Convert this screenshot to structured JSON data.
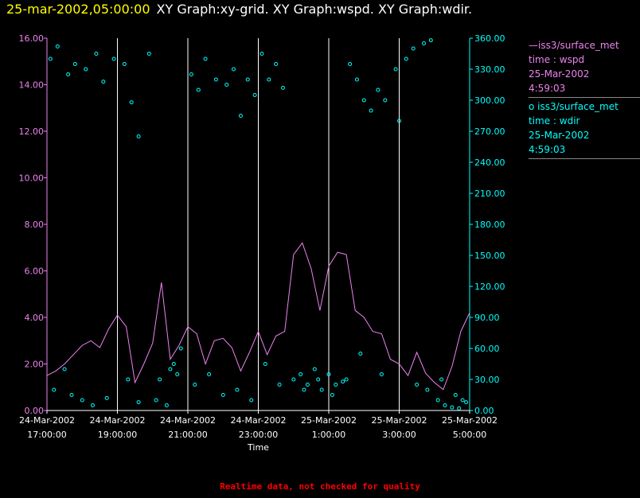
{
  "header": {
    "date": "25-mar-2002,05:00:00",
    "graphs": "XY Graph:xy-grid.  XY Graph:wspd.  XY Graph:wdir."
  },
  "legend": {
    "series1": {
      "name": "iss3/surface_met",
      "var": "time : wspd",
      "date": "25-Mar-2002",
      "time": "4:59:03",
      "color": "#ee82ee"
    },
    "series2": {
      "name": "iss3/surface_met",
      "var": "time : wdir",
      "date": "25-Mar-2002",
      "time": "4:59:03",
      "color": "#00ffff"
    }
  },
  "footer": "Realtime data, not checked for quality",
  "chart_data": {
    "type": "line",
    "xlabel": "Time",
    "x_ticks": [
      {
        "date": "24-Mar-2002",
        "time": "17:00:00"
      },
      {
        "date": "24-Mar-2002",
        "time": "19:00:00"
      },
      {
        "date": "24-Mar-2002",
        "time": "21:00:00"
      },
      {
        "date": "24-Mar-2002",
        "time": "23:00:00"
      },
      {
        "date": "25-Mar-2002",
        "time": "1:00:00"
      },
      {
        "date": "25-Mar-2002",
        "time": "3:00:00"
      },
      {
        "date": "25-Mar-2002",
        "time": "5:00:00"
      }
    ],
    "xlim_hours": [
      17,
      29
    ],
    "y_left": {
      "ylim": [
        0,
        16
      ],
      "ticks": [
        "0.00",
        "2.00",
        "4.00",
        "6.00",
        "8.00",
        "10.00",
        "12.00",
        "14.00",
        "16.00"
      ],
      "color": "#ee82ee"
    },
    "y_right": {
      "ylim": [
        0,
        360
      ],
      "ticks": [
        "0.00",
        "30.00",
        "60.00",
        "90.00",
        "120.00",
        "150.00",
        "180.00",
        "210.00",
        "240.00",
        "270.00",
        "300.00",
        "330.00",
        "360.00"
      ],
      "color": "#00ffff"
    },
    "grid": "vertical",
    "series": [
      {
        "name": "time : wspd",
        "type": "line",
        "color": "#ee82ee",
        "x_hours": [
          17.0,
          17.25,
          17.5,
          17.75,
          18.0,
          18.25,
          18.5,
          18.75,
          19.0,
          19.25,
          19.5,
          19.75,
          20.0,
          20.25,
          20.5,
          20.75,
          21.0,
          21.25,
          21.5,
          21.75,
          22.0,
          22.25,
          22.5,
          22.75,
          23.0,
          23.25,
          23.5,
          23.75,
          24.0,
          24.25,
          24.5,
          24.75,
          25.0,
          25.25,
          25.5,
          25.75,
          26.0,
          26.25,
          26.5,
          26.75,
          27.0,
          27.25,
          27.5,
          27.75,
          28.0,
          28.25,
          28.5,
          28.75,
          29.0
        ],
        "values": [
          1.5,
          1.7,
          2.0,
          2.4,
          2.8,
          3.0,
          2.7,
          3.5,
          4.1,
          3.6,
          1.2,
          2.0,
          2.9,
          5.5,
          2.2,
          2.8,
          3.6,
          3.3,
          2.0,
          3.0,
          3.1,
          2.7,
          1.7,
          2.5,
          3.4,
          2.4,
          3.2,
          3.4,
          6.7,
          7.2,
          6.1,
          4.3,
          6.2,
          6.8,
          6.7,
          4.3,
          4.0,
          3.4,
          3.3,
          2.2,
          2.0,
          1.5,
          2.5,
          1.6,
          1.2,
          0.9,
          1.9,
          3.4,
          4.2
        ]
      },
      {
        "name": "time : wdir",
        "type": "scatter",
        "color": "#00ffff",
        "x_hours": [
          17.1,
          17.3,
          17.6,
          17.8,
          18.1,
          18.4,
          18.6,
          18.9,
          19.2,
          19.4,
          19.6,
          19.9,
          20.2,
          20.5,
          20.7,
          21.1,
          21.3,
          21.5,
          21.8,
          22.1,
          22.3,
          22.5,
          22.7,
          22.9,
          23.1,
          23.3,
          23.5,
          23.7,
          24.0,
          24.2,
          24.4,
          24.6,
          24.8,
          25.0,
          25.2,
          25.4,
          25.6,
          25.8,
          26.0,
          26.2,
          26.4,
          26.6,
          26.9,
          27.2,
          27.4,
          27.7,
          27.9,
          28.1,
          28.3,
          28.5,
          28.7,
          28.9,
          17.2,
          17.5,
          17.7,
          18.0,
          18.3,
          18.7,
          19.3,
          19.6,
          20.1,
          20.4,
          20.6,
          20.8,
          21.2,
          21.6,
          22.0,
          22.4,
          22.8,
          23.2,
          23.6,
          24.3,
          24.7,
          25.1,
          25.5,
          25.9,
          26.5,
          27.0,
          27.5,
          27.8,
          28.2,
          28.6,
          28.8
        ],
        "values": [
          340,
          352,
          325,
          335,
          330,
          345,
          318,
          340,
          335,
          298,
          265,
          345,
          30,
          40,
          35,
          325,
          310,
          340,
          320,
          315,
          330,
          285,
          320,
          305,
          345,
          320,
          335,
          312,
          30,
          35,
          25,
          40,
          20,
          35,
          25,
          28,
          335,
          320,
          300,
          290,
          310,
          300,
          330,
          340,
          350,
          355,
          358,
          10,
          5,
          3,
          2,
          8,
          20,
          40,
          15,
          10,
          5,
          12,
          30,
          8,
          10,
          5,
          45,
          60,
          25,
          35,
          15,
          20,
          10,
          45,
          25,
          20,
          30,
          15,
          30,
          55,
          35,
          280,
          25,
          20,
          30,
          15,
          10
        ]
      }
    ]
  }
}
